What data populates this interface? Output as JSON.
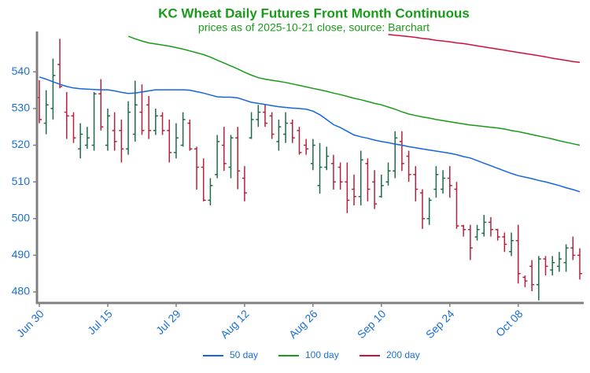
{
  "chart_data": {
    "type": "ohlc",
    "title": "KC Wheat Daily Futures Front Month Continuous",
    "subtitle": "prices as of 2025-10-21 close, source: Barchart",
    "categories": [
      "Jun 30",
      null,
      null,
      null,
      null,
      null,
      null,
      null,
      null,
      null,
      "Jul 15",
      null,
      null,
      null,
      null,
      null,
      null,
      null,
      null,
      null,
      "Jul 29",
      null,
      null,
      null,
      null,
      null,
      null,
      null,
      null,
      null,
      "Aug 12",
      null,
      null,
      null,
      null,
      null,
      null,
      null,
      null,
      null,
      "Aug 26",
      null,
      null,
      null,
      null,
      null,
      null,
      null,
      null,
      null,
      "Sep 10",
      null,
      null,
      null,
      null,
      null,
      null,
      null,
      null,
      null,
      "Sep 24",
      null,
      null,
      null,
      null,
      null,
      null,
      null,
      null,
      null,
      "Oct 08",
      null,
      null,
      null,
      null,
      null,
      null,
      null,
      null,
      null
    ],
    "open": [
      533,
      526,
      530,
      542,
      529,
      528,
      519,
      520,
      520,
      534,
      520,
      524,
      524,
      519,
      523,
      529,
      531,
      524,
      528,
      524,
      518,
      520,
      526,
      519,
      514,
      505,
      512,
      520,
      514,
      522,
      511,
      522,
      527,
      529,
      528,
      521,
      523,
      526,
      524,
      520,
      515,
      509,
      514,
      515,
      514,
      510,
      508,
      506,
      515,
      510,
      506,
      510,
      513,
      521,
      517,
      512,
      507,
      500,
      508,
      508,
      511,
      508,
      498,
      497,
      495,
      496,
      499,
      497,
      495,
      491,
      494,
      484,
      487,
      482,
      489,
      486,
      487,
      488,
      492,
      490
    ],
    "high": [
      537.7,
      535,
      543.6,
      549,
      534.5,
      529,
      526,
      525,
      534.5,
      538,
      530,
      529,
      527,
      532,
      537.6,
      536.6,
      533.4,
      530,
      529,
      527,
      526,
      529,
      527,
      519.6,
      516.4,
      511,
      522.8,
      525,
      522.8,
      525,
      514.3,
      529,
      531,
      531,
      529,
      527,
      529,
      527,
      525,
      521.7,
      521.7,
      520.6,
      519.6,
      517.4,
      515.3,
      515.3,
      512,
      518.5,
      516.4,
      513.2,
      512,
      515.3,
      523.8,
      523.8,
      518.5,
      514.3,
      508,
      505.7,
      514.3,
      513.2,
      514.3,
      510,
      498.3,
      498.3,
      498.3,
      501,
      500.4,
      497.2,
      496.2,
      496.2,
      498.3,
      484.5,
      488.7,
      489.8,
      489.8,
      489.8,
      490.9,
      493,
      495.1,
      491.9
    ],
    "low": [
      526,
      523,
      527,
      535.5,
      521.7,
      520.6,
      516.4,
      519,
      518.5,
      524,
      518.5,
      518.5,
      515.3,
      517.4,
      521,
      522.8,
      521.7,
      522.8,
      522.8,
      515.3,
      516.4,
      519.6,
      518.5,
      507.9,
      504.7,
      503.6,
      511,
      513,
      511,
      508,
      504.7,
      521.7,
      525,
      525,
      521.7,
      518.5,
      520.6,
      520.6,
      517.4,
      517.4,
      513.2,
      506.8,
      513.2,
      507.9,
      507.9,
      501.5,
      503.6,
      503.6,
      504.7,
      502.6,
      505.7,
      509,
      511,
      513,
      510,
      504.7,
      497.2,
      498.3,
      505.7,
      506.8,
      505.7,
      497.2,
      495.1,
      488.7,
      494,
      495.1,
      495.1,
      494,
      490.9,
      489.8,
      482.3,
      481.3,
      480.2,
      477.7,
      484.5,
      484.5,
      485.5,
      485.5,
      488.7,
      483.4
    ],
    "close": [
      527,
      531,
      539,
      536,
      528,
      522,
      523,
      522,
      534,
      525,
      528,
      521,
      519,
      529,
      531,
      524,
      524,
      528,
      524,
      518,
      522,
      527,
      519,
      514,
      505,
      509,
      521,
      515,
      522,
      513,
      507,
      527,
      529,
      526,
      523,
      525,
      526,
      522,
      518,
      519,
      520,
      514,
      517,
      510,
      510,
      505,
      506,
      516,
      508,
      504,
      509,
      513,
      522,
      515,
      512,
      508,
      500,
      505,
      512,
      511,
      509,
      498,
      497,
      492,
      497,
      499,
      497,
      495,
      493,
      494,
      485,
      483,
      482,
      489,
      487,
      488,
      489,
      492,
      490,
      485
    ],
    "up_color": "#1e6b4a",
    "down_color": "#b5213a",
    "series": [
      {
        "name": "50 day",
        "type": "line",
        "color": "#1565e0",
        "values": [
          538.6,
          538,
          537.3,
          536.6,
          536,
          535.6,
          535.4,
          535.3,
          535.2,
          535.1,
          535.1,
          534.8,
          534.4,
          534.1,
          534.2,
          534.5,
          534.8,
          535.1,
          535.1,
          535.1,
          535.1,
          535.1,
          535,
          534.6,
          534.2,
          533.7,
          533.2,
          533.1,
          533.1,
          532.9,
          532.3,
          531.7,
          531.4,
          531.1,
          530.8,
          530.5,
          530.3,
          530.1,
          530,
          529.8,
          529.3,
          528.3,
          527,
          525.6,
          524.8,
          523.8,
          522.8,
          522.3,
          521.9,
          521.4,
          521,
          520.7,
          520.3,
          520,
          519.6,
          519.3,
          519,
          518.7,
          518.4,
          518.1,
          517.8,
          517.4,
          516.9,
          516.5,
          515.8,
          515.1,
          514.4,
          513.7,
          513,
          512.3,
          511.7,
          511.3,
          510.9,
          510.4,
          510,
          509.5,
          509,
          508.4,
          507.9,
          507.3
        ]
      },
      {
        "name": "100 day",
        "type": "line",
        "color": "#1a9a1a",
        "values": [
          null,
          null,
          null,
          null,
          null,
          null,
          null,
          null,
          null,
          null,
          null,
          null,
          null,
          549.7,
          549,
          548.4,
          547.9,
          547.6,
          547.3,
          547,
          546.6,
          546.2,
          545.7,
          545.2,
          544.7,
          544,
          543.2,
          542.4,
          541.6,
          540.8,
          539.9,
          539.1,
          538.4,
          538,
          537.7,
          537.4,
          537.1,
          536.7,
          536.3,
          535.9,
          535.5,
          535.1,
          534.7,
          534.2,
          533.8,
          533.3,
          532.8,
          532.4,
          531.9,
          531.4,
          531,
          530.4,
          529.8,
          529.1,
          528.5,
          528.1,
          527.7,
          527.4,
          527,
          526.7,
          526.4,
          526.1,
          525.8,
          525.5,
          525.3,
          525.1,
          524.9,
          524.7,
          524.4,
          524,
          523.7,
          523.3,
          522.9,
          522.5,
          522.1,
          521.7,
          521.2,
          520.8,
          520.4,
          520
        ]
      },
      {
        "name": "200 day",
        "type": "line",
        "color": "#d0103a",
        "values": [
          null,
          null,
          null,
          null,
          null,
          null,
          null,
          null,
          null,
          null,
          null,
          null,
          null,
          null,
          null,
          null,
          null,
          null,
          null,
          null,
          null,
          null,
          null,
          null,
          null,
          null,
          null,
          null,
          null,
          null,
          null,
          null,
          null,
          null,
          null,
          null,
          null,
          null,
          null,
          null,
          null,
          null,
          null,
          null,
          null,
          null,
          null,
          null,
          null,
          null,
          null,
          550.2,
          550,
          549.8,
          549.6,
          549.4,
          549.1,
          548.9,
          548.6,
          548.4,
          548.2,
          547.9,
          547.7,
          547.4,
          547.1,
          546.8,
          546.5,
          546.2,
          545.9,
          545.6,
          545.3,
          545,
          544.7,
          544.4,
          544.1,
          543.7,
          543.4,
          543.1,
          542.8,
          542.6
        ]
      }
    ],
    "ylim": [
      477,
      551
    ],
    "yticks": [
      480,
      490,
      500,
      510,
      520,
      530,
      540
    ],
    "legend": "bottom"
  }
}
